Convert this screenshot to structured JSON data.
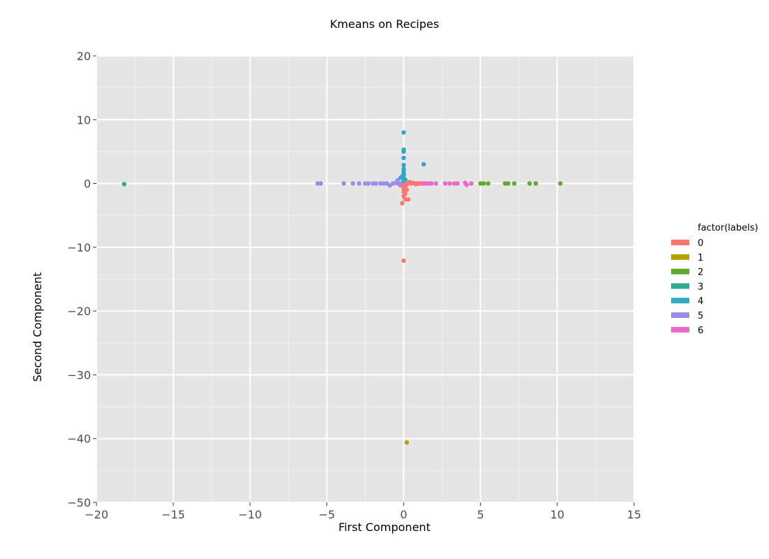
{
  "chart_data": {
    "type": "scatter",
    "title": "Kmeans on Recipes",
    "xlabel": "First Component",
    "ylabel": "Second Component",
    "xlim": [
      -20,
      15
    ],
    "ylim": [
      -50,
      20
    ],
    "x_ticks": [
      -20,
      -15,
      -10,
      -5,
      0,
      5,
      10,
      15
    ],
    "y_ticks": [
      20,
      10,
      0,
      -10,
      -20,
      -30,
      -40,
      -50
    ],
    "x_tick_labels": [
      "−20",
      "−15",
      "−10",
      "−5",
      "0",
      "5",
      "10",
      "15"
    ],
    "y_tick_labels": [
      "20",
      "10",
      "0",
      "−10",
      "−20",
      "−30",
      "−40",
      "−50"
    ],
    "grid": true,
    "legend": {
      "title": "factor(labels)",
      "position": "right"
    },
    "series": [
      {
        "name": "0",
        "color": "#f8766d",
        "points": [
          [
            0.0,
            -12.1
          ],
          [
            -0.1,
            -3.1
          ],
          [
            0.1,
            -2.5
          ],
          [
            0.3,
            -2.5
          ],
          [
            0.0,
            -2.0
          ],
          [
            0.1,
            -1.6
          ],
          [
            0.0,
            -1.3
          ],
          [
            0.2,
            -1.0
          ],
          [
            0.0,
            -0.8
          ],
          [
            0.1,
            -0.5
          ],
          [
            0.0,
            -0.3
          ],
          [
            -0.2,
            -0.3
          ],
          [
            0.2,
            -0.1
          ],
          [
            0.3,
            0.1
          ],
          [
            0.4,
            0.2
          ],
          [
            0.5,
            0.0
          ],
          [
            0.7,
            0.0
          ],
          [
            0.9,
            0.0
          ],
          [
            1.1,
            0.0
          ],
          [
            1.3,
            0.0
          ],
          [
            0.1,
            0.3
          ],
          [
            0.0,
            0.1
          ],
          [
            0.6,
            0.1
          ],
          [
            0.8,
            -0.1
          ],
          [
            1.0,
            0.0
          ]
        ]
      },
      {
        "name": "1",
        "color": "#b79f00",
        "points": [
          [
            0.2,
            -40.6
          ]
        ]
      },
      {
        "name": "2",
        "color": "#61a82c",
        "points": [
          [
            10.2,
            0.0
          ],
          [
            8.6,
            0.0
          ],
          [
            8.2,
            0.0
          ],
          [
            7.2,
            0.0
          ],
          [
            6.8,
            0.0
          ],
          [
            6.6,
            0.0
          ],
          [
            5.5,
            0.0
          ],
          [
            5.2,
            0.0
          ],
          [
            5.0,
            0.0
          ]
        ]
      },
      {
        "name": "3",
        "color": "#2eab8f",
        "points": [
          [
            -18.2,
            -0.1
          ]
        ]
      },
      {
        "name": "4",
        "color": "#33a7c6",
        "points": [
          [
            0.0,
            8.0
          ],
          [
            0.0,
            5.3
          ],
          [
            0.0,
            5.0
          ],
          [
            0.0,
            4.0
          ],
          [
            1.3,
            3.0
          ],
          [
            0.0,
            2.9
          ],
          [
            0.0,
            2.3
          ],
          [
            0.0,
            2.0
          ],
          [
            0.0,
            1.6
          ],
          [
            0.0,
            1.3
          ],
          [
            -0.1,
            1.1
          ],
          [
            -0.2,
            0.9
          ],
          [
            0.0,
            0.8
          ],
          [
            0.1,
            0.6
          ],
          [
            0.0,
            0.4
          ]
        ]
      },
      {
        "name": "5",
        "color": "#9c8ce8",
        "points": [
          [
            -5.4,
            0.0
          ],
          [
            -5.6,
            0.0
          ],
          [
            -3.9,
            0.0
          ],
          [
            -3.3,
            0.0
          ],
          [
            -2.9,
            0.0
          ],
          [
            -2.5,
            0.0
          ],
          [
            -2.3,
            0.0
          ],
          [
            -2.0,
            0.0
          ],
          [
            -1.8,
            0.0
          ],
          [
            -1.5,
            0.0
          ],
          [
            -1.3,
            0.0
          ],
          [
            -1.1,
            0.0
          ],
          [
            -0.9,
            -0.3
          ],
          [
            -0.7,
            0.0
          ],
          [
            -0.5,
            0.1
          ],
          [
            -0.4,
            0.5
          ],
          [
            -0.3,
            -0.1
          ],
          [
            -0.2,
            0.0
          ]
        ]
      },
      {
        "name": "6",
        "color": "#eb67c8",
        "points": [
          [
            4.4,
            0.0
          ],
          [
            4.1,
            -0.2
          ],
          [
            4.0,
            0.1
          ],
          [
            3.5,
            0.0
          ],
          [
            3.3,
            0.0
          ],
          [
            3.0,
            0.0
          ],
          [
            2.7,
            0.0
          ],
          [
            2.1,
            0.0
          ],
          [
            1.8,
            0.0
          ],
          [
            1.6,
            0.0
          ],
          [
            1.4,
            0.0
          ],
          [
            1.2,
            0.0
          ]
        ]
      }
    ]
  }
}
